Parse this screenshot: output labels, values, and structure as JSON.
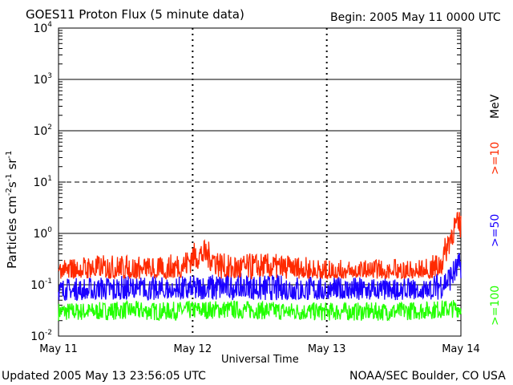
{
  "header": {
    "title": "GOES11 Proton Flux (5 minute data)",
    "begin": "Begin: 2005 May 11 0000 UTC"
  },
  "footer": {
    "updated": "Updated 2005 May 13 23:56:05 UTC",
    "source": "NOAA/SEC Boulder, CO USA"
  },
  "colors": {
    "ge10": "#ff2a00",
    "ge50": "#1a00ff",
    "ge100": "#22ff00",
    "grid": "#000000"
  },
  "chart_data": {
    "type": "line",
    "title": "GOES11 Proton Flux (5 minute data)",
    "xlabel": "Universal Time",
    "ylabel_base": "Particles cm",
    "ylabel_sup1": "-2",
    "ylabel_mid1": "s",
    "ylabel_sup2": "-1",
    "ylabel_mid2": "sr",
    "ylabel_sup3": "-1",
    "x_ticks": [
      "May 11",
      "May 12",
      "May 13",
      "May 14"
    ],
    "x_tick_days": [
      0,
      1,
      2,
      3
    ],
    "y_scale": "log",
    "ylim": [
      0.01,
      10000
    ],
    "y_ticks": [
      {
        "base": "10",
        "exp": "-2",
        "value": 0.01
      },
      {
        "base": "10",
        "exp": "-1",
        "value": 0.1
      },
      {
        "base": "10",
        "exp": "0",
        "value": 1
      },
      {
        "base": "10",
        "exp": "1",
        "value": 10
      },
      {
        "base": "10",
        "exp": "2",
        "value": 100
      },
      {
        "base": "10",
        "exp": "3",
        "value": 1000
      },
      {
        "base": "10",
        "exp": "4",
        "value": 10000
      }
    ],
    "unit_label": "MeV",
    "series": [
      {
        "name": ">=10",
        "color": "#ff2a00",
        "x": [
          0,
          0.25,
          0.5,
          0.75,
          0.95,
          1.0,
          1.1,
          1.25,
          1.5,
          1.75,
          2.0,
          2.25,
          2.5,
          2.6,
          2.75,
          2.85,
          2.9,
          2.95,
          3.0
        ],
        "y": [
          0.17,
          0.2,
          0.2,
          0.18,
          0.25,
          0.35,
          0.4,
          0.2,
          0.22,
          0.2,
          0.16,
          0.16,
          0.17,
          0.16,
          0.17,
          0.25,
          0.6,
          1.3,
          1.5
        ]
      },
      {
        "name": ">=50",
        "color": "#1a00ff",
        "x": [
          0,
          0.25,
          0.5,
          0.75,
          1.0,
          1.25,
          1.5,
          1.75,
          2.0,
          2.25,
          2.5,
          2.75,
          2.9,
          3.0
        ],
        "y": [
          0.07,
          0.075,
          0.08,
          0.075,
          0.08,
          0.09,
          0.085,
          0.08,
          0.075,
          0.075,
          0.07,
          0.07,
          0.12,
          0.25
        ]
      },
      {
        "name": ">=100",
        "color": "#22ff00",
        "x": [
          0,
          0.25,
          0.5,
          0.75,
          1.0,
          1.25,
          1.5,
          1.75,
          2.0,
          2.25,
          2.5,
          2.75,
          3.0
        ],
        "y": [
          0.03,
          0.03,
          0.032,
          0.03,
          0.032,
          0.033,
          0.032,
          0.03,
          0.03,
          0.03,
          0.03,
          0.032,
          0.035
        ]
      }
    ],
    "dashed_gridlines_at": [
      10
    ],
    "solid_gridlines_at": [
      0.1,
      1,
      100,
      1000
    ],
    "legend_placement": "right, vertical"
  }
}
